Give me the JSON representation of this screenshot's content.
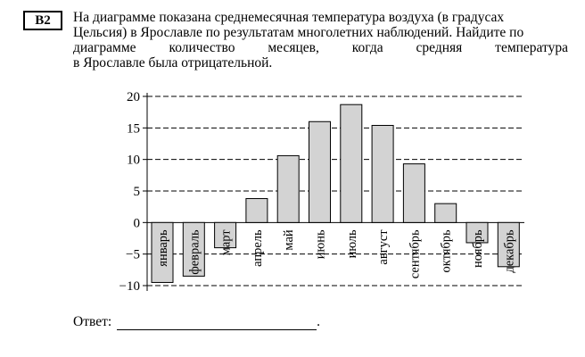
{
  "task": {
    "number": "B2",
    "lines": [
      "На диаграмме показана среднемесячная температура воздуха (в градусах",
      "Цельсия) в Ярославле по результатам многолетних наблюдений. Найдите по",
      "диаграмме количество месяцев, когда средняя температура",
      "в Ярославле была отрицательной."
    ]
  },
  "answer": {
    "label": "Ответ:",
    "end": "."
  },
  "colors": {
    "bar_fill": "#d3d3d3",
    "bar_stroke": "#000000",
    "grid": "#000000"
  },
  "chart_data": {
    "type": "bar",
    "categories": [
      "январь",
      "февраль",
      "март",
      "апрель",
      "май",
      "июнь",
      "июль",
      "август",
      "сентябрь",
      "октябрь",
      "ноябрь",
      "декабрь"
    ],
    "values": [
      -9.5,
      -8.5,
      -4,
      3.8,
      10.6,
      16,
      18.7,
      15.4,
      9.3,
      3,
      -3.2,
      -7
    ],
    "yticks": [
      20,
      15,
      10,
      5,
      0,
      -5,
      -10
    ],
    "ylim": [
      -10,
      20
    ],
    "grid": true,
    "title": "",
    "xlabel": "",
    "ylabel": ""
  }
}
